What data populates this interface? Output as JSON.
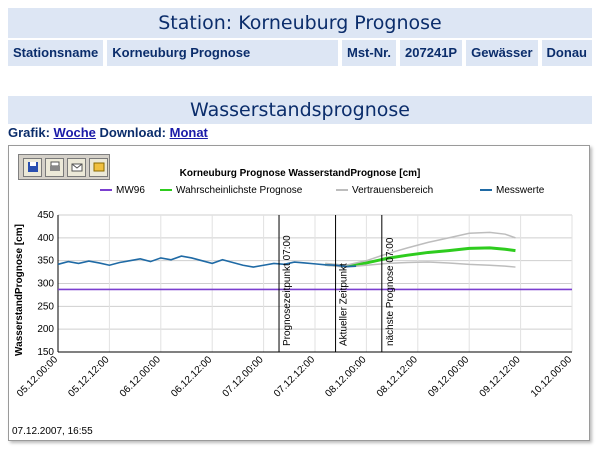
{
  "station": {
    "title": "Station: Korneuburg Prognose",
    "fields": [
      {
        "label": "Stationsname"
      },
      {
        "label": "Korneuburg Prognose"
      },
      {
        "label": "Mst-Nr."
      },
      {
        "label": "207241P"
      },
      {
        "label": "Gewässer"
      },
      {
        "label": "Donau"
      }
    ]
  },
  "forecast": {
    "title": "Wasserstandsprognose",
    "grafik_label": "Grafik:",
    "grafik_link": "Woche",
    "download_label": "Download:",
    "download_link": "Monat"
  },
  "toolbar": {
    "icons": [
      "save-icon",
      "print-icon",
      "email-icon",
      "export-icon"
    ]
  },
  "timestamp": "07.12.2007, 16:55",
  "chart_data": {
    "type": "line",
    "title": "Korneuburg Prognose WasserstandPrognose [cm]",
    "ylabel": "WasserstandPrognose [cm]",
    "ylim": [
      150,
      450
    ],
    "yticks": [
      150,
      200,
      250,
      300,
      350,
      400,
      450
    ],
    "xticks": [
      "05.12.00:00",
      "05.12.12:00",
      "06.12.00:00",
      "06.12.12:00",
      "07.12.00:00",
      "07.12.12:00",
      "08.12.00:00",
      "08.12.12:00",
      "09.12.00:00",
      "09.12.12:00",
      "10.12.00:00"
    ],
    "grid": true,
    "legend_position": "top",
    "series": [
      {
        "name": "MW96",
        "color": "#7b3fd0",
        "x": [
          0,
          5
        ],
        "values": [
          287,
          287
        ]
      },
      {
        "name": "Wahrscheinlichste Prognose",
        "color": "#2ecc1e",
        "x": [
          2.6,
          2.8,
          3.0,
          3.2,
          3.4,
          3.6,
          3.8,
          4.0,
          4.2,
          4.35,
          4.45
        ],
        "values": [
          342,
          338,
          345,
          355,
          362,
          368,
          372,
          377,
          378,
          375,
          372
        ]
      },
      {
        "name": "Vertrauensbereich",
        "color": "#bdbdbd",
        "x": [
          2.6,
          2.8,
          3.0,
          3.2,
          3.4,
          3.6,
          3.8,
          4.0,
          4.2,
          4.35,
          4.45
        ],
        "values": [
          344,
          340,
          350,
          365,
          378,
          390,
          400,
          410,
          412,
          408,
          400
        ],
        "lower": [
          340,
          336,
          340,
          344,
          346,
          347,
          345,
          342,
          340,
          338,
          336
        ]
      },
      {
        "name": "Messwerte",
        "color": "#1f6aa5",
        "x": [
          0,
          0.1,
          0.2,
          0.3,
          0.4,
          0.5,
          0.6,
          0.7,
          0.8,
          0.9,
          1.0,
          1.1,
          1.2,
          1.3,
          1.4,
          1.5,
          1.6,
          1.7,
          1.8,
          1.9,
          2.0,
          2.1,
          2.2,
          2.3,
          2.4,
          2.5,
          2.6,
          2.7,
          2.8,
          2.9
        ],
        "values": [
          342,
          348,
          344,
          349,
          345,
          340,
          346,
          350,
          354,
          348,
          356,
          352,
          360,
          356,
          350,
          344,
          352,
          346,
          340,
          336,
          340,
          344,
          342,
          347,
          345,
          343,
          341,
          340,
          337,
          338
        ]
      }
    ],
    "annotations": [
      {
        "label": "Prognosezeitpunkt 07:00",
        "x": 2.15
      },
      {
        "label": "Aktueller Zeitpunkt",
        "x": 2.7
      },
      {
        "label": "nächste Prognose 07:00",
        "x": 3.15
      }
    ]
  }
}
